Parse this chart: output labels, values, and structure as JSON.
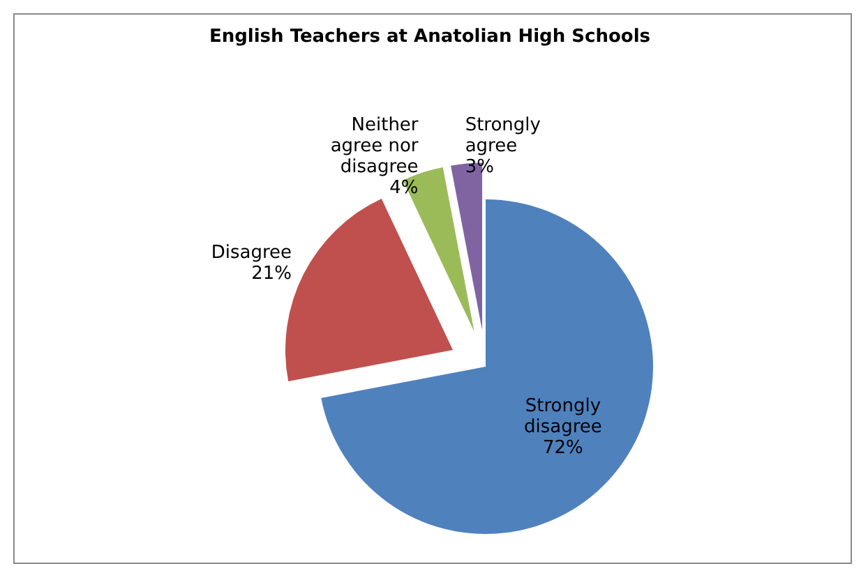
{
  "chart_data": {
    "type": "pie",
    "title": "English Teachers at Anatolian  High Schools",
    "categories": [
      "Strongly disagree",
      "Disagree",
      "Neither agree nor disagree",
      "Strongly agree"
    ],
    "values": [
      72,
      21,
      4,
      3
    ],
    "value_labels": [
      "72%",
      "21%",
      "4%",
      "3%"
    ],
    "colors": [
      "#4f81bd",
      "#c0504d",
      "#9bbb59",
      "#8064a2"
    ]
  }
}
